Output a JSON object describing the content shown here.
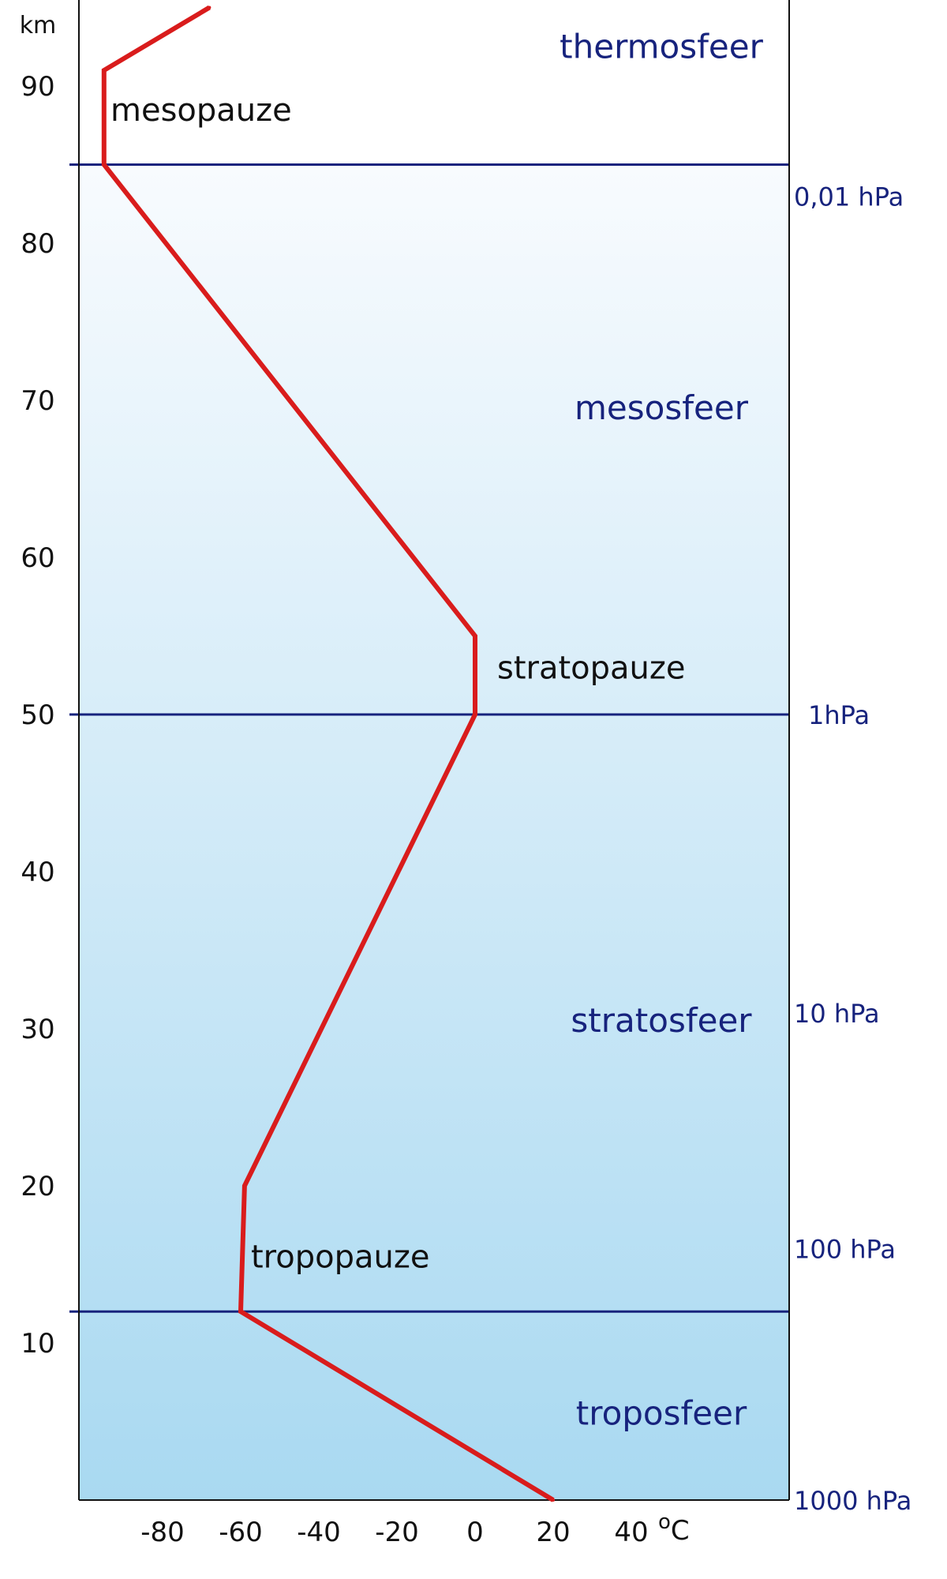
{
  "chart_data": {
    "type": "line",
    "ylabel": "km",
    "xlabel": "oC",
    "y_ticks": [
      10,
      20,
      30,
      40,
      50,
      60,
      70,
      80,
      90
    ],
    "x_ticks": [
      -80,
      -60,
      -40,
      -20,
      0,
      20,
      40
    ],
    "xlim": [
      -100,
      45
    ],
    "ylim": [
      0,
      95
    ],
    "series": [
      {
        "color": "#d91c1c",
        "points": [
          {
            "t": 20,
            "h": 0
          },
          {
            "t": -60,
            "h": 12
          },
          {
            "t": -59,
            "h": 20
          },
          {
            "t": 0,
            "h": 50
          },
          {
            "t": 0,
            "h": 55
          },
          {
            "t": -95,
            "h": 85
          },
          {
            "t": -95,
            "h": 91
          },
          {
            "t": -68,
            "h": 95
          }
        ]
      }
    ],
    "boundaries": [
      {
        "altitude": 12,
        "pressure": ""
      },
      {
        "altitude": 50,
        "pressure": "1hPa"
      },
      {
        "altitude": 85,
        "pressure": "0,01 hPa"
      }
    ],
    "pressure_labels": [
      {
        "altitude": 0,
        "text": "1000 hPa"
      },
      {
        "altitude": 16,
        "text": "100 hPa"
      },
      {
        "altitude": 31,
        "text": "10 hPa"
      },
      {
        "altitude": 50,
        "text": "1hPa"
      },
      {
        "altitude": 83,
        "text": "0,01 hPa"
      }
    ],
    "layers": [
      {
        "name": "troposfeer",
        "altitude": 5.5
      },
      {
        "name": "stratosfeer",
        "altitude": 30.5
      },
      {
        "name": "mesosfeer",
        "altitude": 69.5
      },
      {
        "name": "thermosfeer",
        "altitude": 92.5
      }
    ],
    "pauses": [
      {
        "name": "tropopauze",
        "altitude": 15.5
      },
      {
        "name": "stratopauze",
        "altitude": 53
      },
      {
        "name": "mesopauze",
        "altitude": 88.5
      }
    ],
    "colors": {
      "curve": "#d91c1c",
      "boundary": "#17237d",
      "axis": "#111111",
      "layer_text": "#17237d",
      "pressure_text": "#17237d",
      "gradient_top": "#f8fbfe",
      "gradient_bottom": "#a9d9f1"
    }
  }
}
